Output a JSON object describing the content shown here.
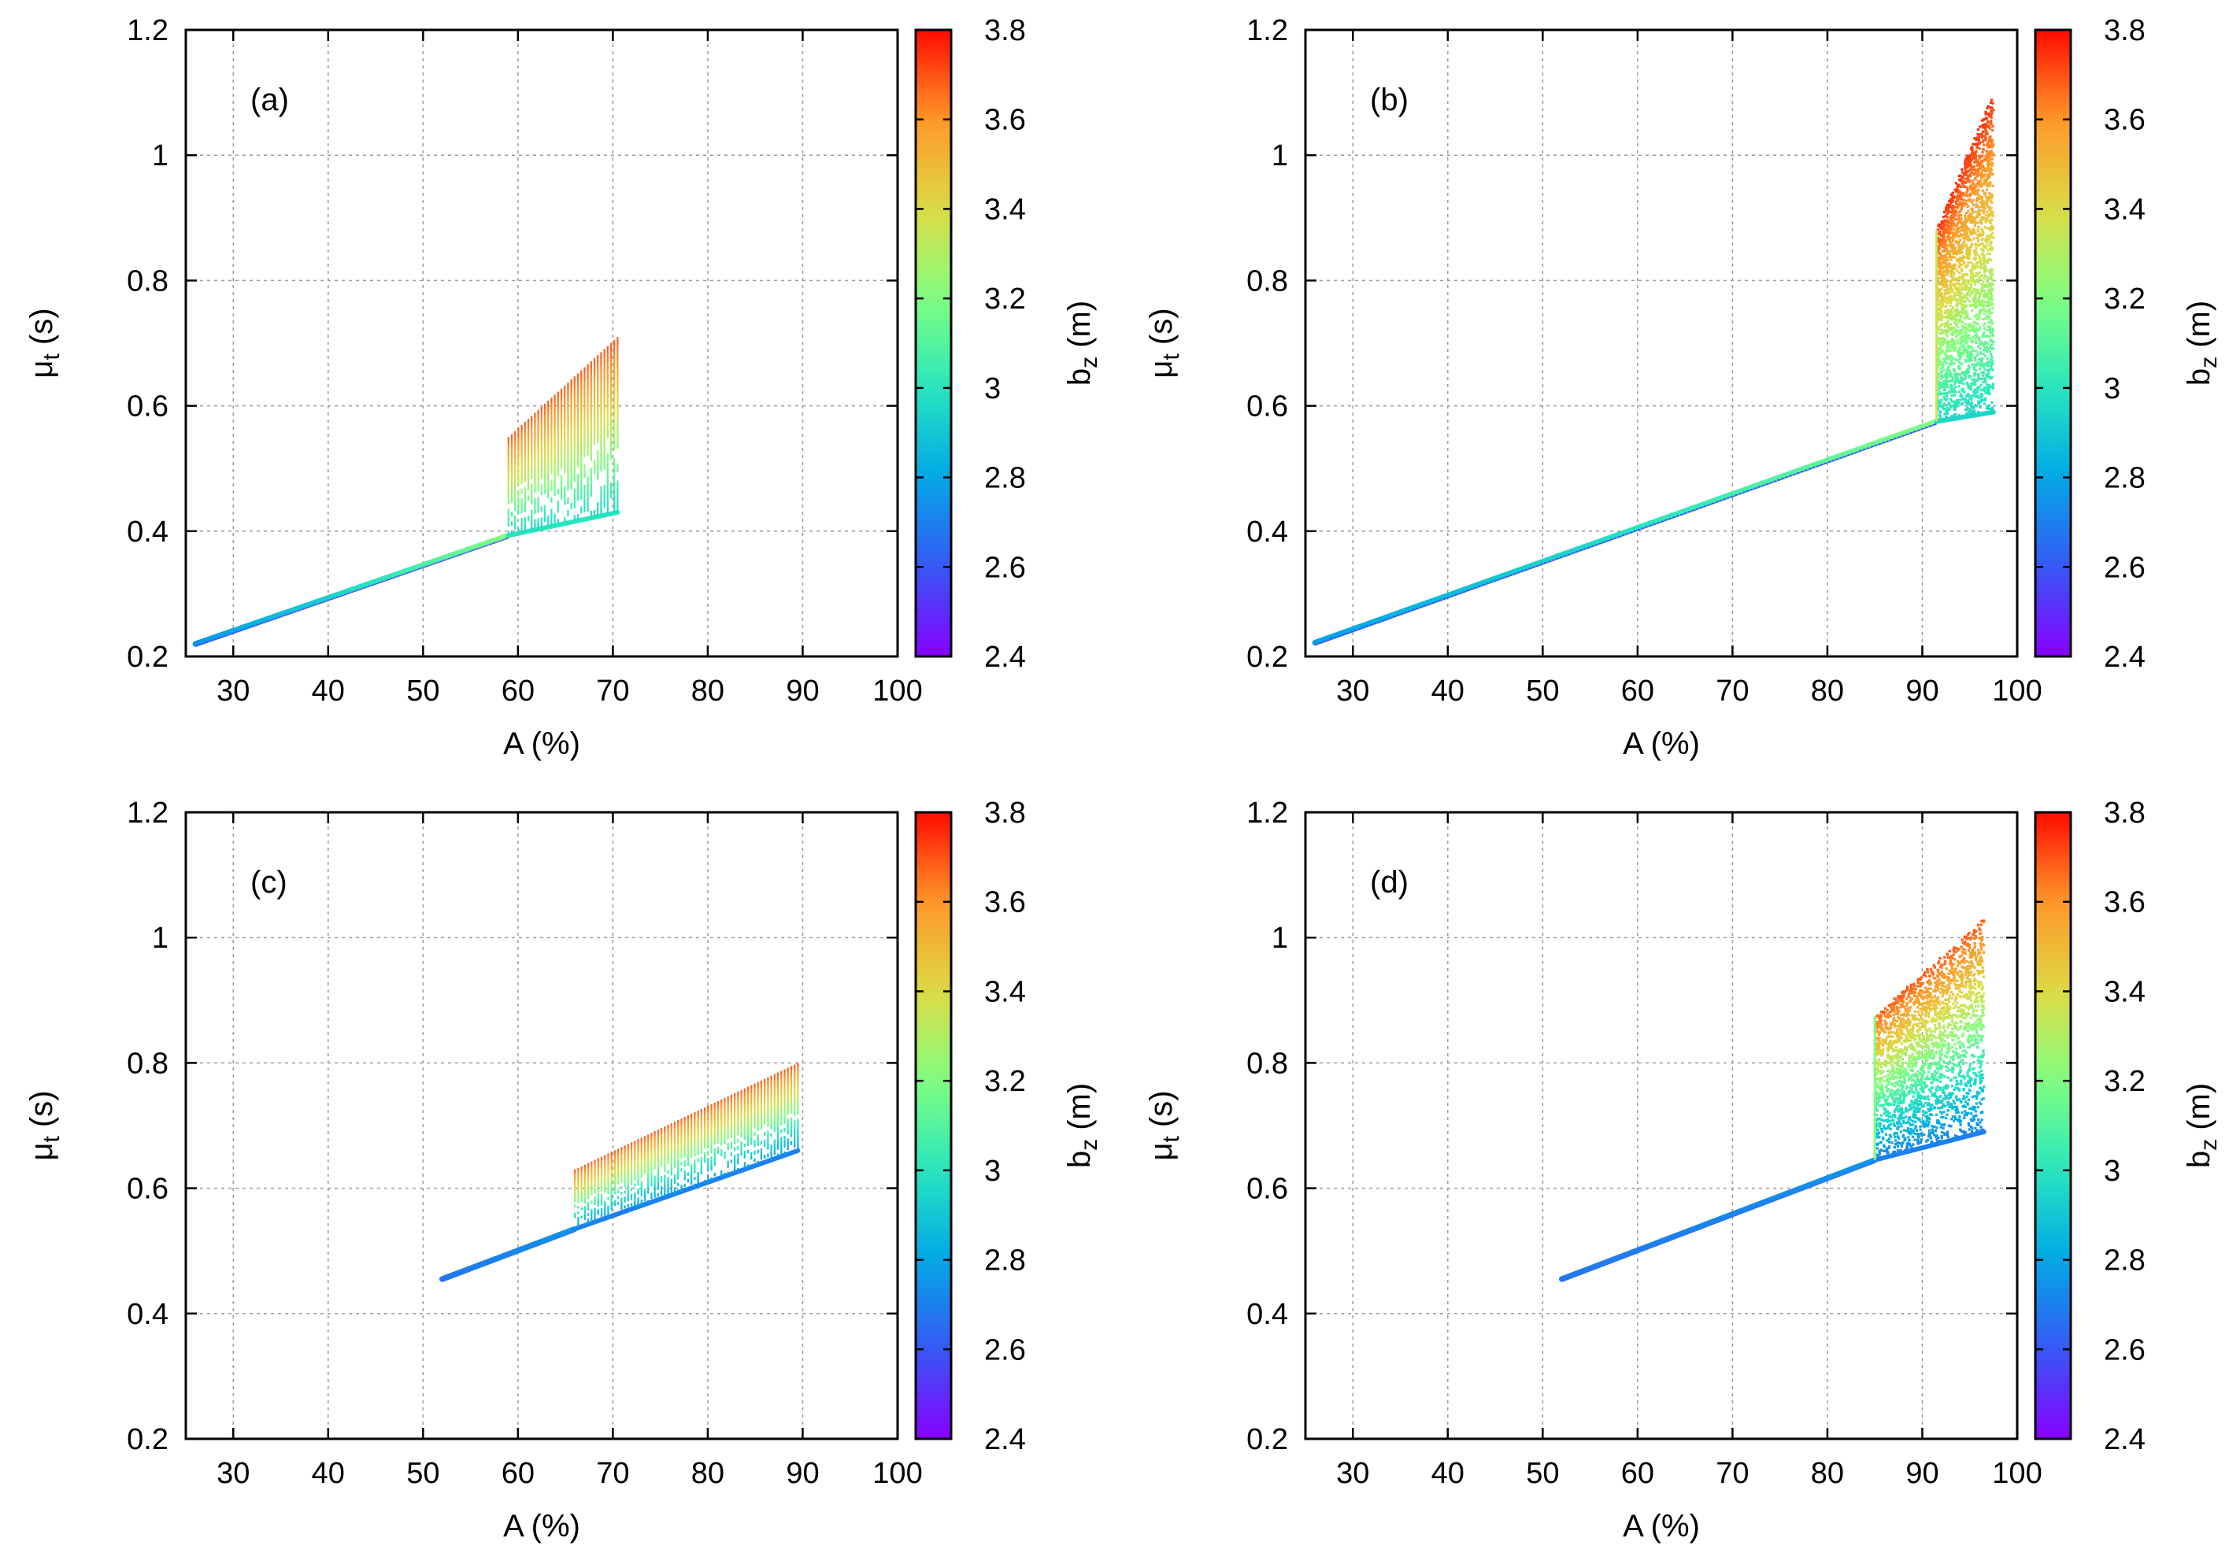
{
  "chart_data": [
    {
      "type": "scatter",
      "panel_label": "(a)",
      "title": "",
      "xlabel": "A (%)",
      "ylabel": "μt (s)",
      "ylabel_main": "μ",
      "ylabel_sub": "t",
      "ylabel_unit": " (s)",
      "xlim": [
        25,
        100
      ],
      "ylim": [
        0.2,
        1.2
      ],
      "xticks": [
        30,
        40,
        50,
        60,
        70,
        80,
        90,
        100
      ],
      "yticks": [
        0.2,
        0.4,
        0.6,
        0.8,
        1,
        1.2
      ],
      "grid": true,
      "colorbar": {
        "label": "bz (m)",
        "label_main": "b",
        "label_sub": "z",
        "label_unit": " (m)",
        "range": [
          2.4,
          3.8
        ],
        "ticks": [
          2.4,
          2.6,
          2.8,
          3,
          3.2,
          3.4,
          3.6,
          3.8
        ],
        "colormap": "rainbow"
      },
      "line": {
        "x": [
          26,
          59
        ],
        "y": [
          0.22,
          0.393
        ],
        "bz_low": 2.55,
        "bz_high": 3.2
      },
      "upper_line": {
        "x": [
          59,
          70.5
        ],
        "y": [
          0.393,
          0.43
        ],
        "bz": 3.0
      },
      "region": {
        "x_start": 59,
        "x_end": 70.5,
        "y_bottom_start": 0.393,
        "y_bottom_end": 0.43,
        "y_top_start": 0.55,
        "y_top_end": 0.71,
        "bz_bottom": 2.95,
        "bz_top": 3.7,
        "style": "stripes"
      }
    },
    {
      "type": "scatter",
      "panel_label": "(b)",
      "title": "",
      "xlabel": "A (%)",
      "ylabel": "μt (s)",
      "ylabel_main": "μ",
      "ylabel_sub": "t",
      "ylabel_unit": " (s)",
      "xlim": [
        25,
        100
      ],
      "ylim": [
        0.2,
        1.2
      ],
      "xticks": [
        30,
        40,
        50,
        60,
        70,
        80,
        90,
        100
      ],
      "yticks": [
        0.2,
        0.4,
        0.6,
        0.8,
        1,
        1.2
      ],
      "grid": true,
      "colorbar": {
        "label": "bz (m)",
        "label_main": "b",
        "label_sub": "z",
        "label_unit": " (m)",
        "range": [
          2.4,
          3.8
        ],
        "ticks": [
          2.4,
          2.6,
          2.8,
          3,
          3.2,
          3.4,
          3.6,
          3.8
        ],
        "colormap": "rainbow"
      },
      "line": {
        "x": [
          26,
          91.5
        ],
        "y": [
          0.222,
          0.575
        ],
        "bz_low": 2.6,
        "bz_high": 3.2
      },
      "upper_line": {
        "x": [
          91.5,
          97.5
        ],
        "y": [
          0.575,
          0.59
        ],
        "bz": 2.95
      },
      "region": {
        "x_start": 91.5,
        "x_end": 97.5,
        "y_bottom_start": 0.575,
        "y_bottom_end": 0.59,
        "y_top_start": 0.88,
        "y_top_end": 1.1,
        "bz_bottom": 2.95,
        "bz_top": 3.75,
        "style": "dense"
      }
    },
    {
      "type": "scatter",
      "panel_label": "(c)",
      "title": "",
      "xlabel": "A (%)",
      "ylabel": "μt (s)",
      "ylabel_main": "μ",
      "ylabel_sub": "t",
      "ylabel_unit": " (s)",
      "xlim": [
        25,
        100
      ],
      "ylim": [
        0.2,
        1.2
      ],
      "xticks": [
        30,
        40,
        50,
        60,
        70,
        80,
        90,
        100
      ],
      "yticks": [
        0.2,
        0.4,
        0.6,
        0.8,
        1,
        1.2
      ],
      "grid": true,
      "colorbar": {
        "label": "bz (m)",
        "label_main": "b",
        "label_sub": "z",
        "label_unit": " (m)",
        "range": [
          2.4,
          3.8
        ],
        "ticks": [
          2.4,
          2.6,
          2.8,
          3,
          3.2,
          3.4,
          3.6,
          3.8
        ],
        "colormap": "rainbow"
      },
      "line": {
        "x": [
          52,
          66
        ],
        "y": [
          0.455,
          0.535
        ],
        "bz_low": 2.65,
        "bz_high": 2.75
      },
      "upper_line": {
        "x": [
          66,
          89.5
        ],
        "y": [
          0.535,
          0.66
        ],
        "bz": 2.7
      },
      "region": {
        "x_start": 66,
        "x_end": 89.5,
        "y_bottom_start": 0.535,
        "y_bottom_end": 0.66,
        "y_top_start": 0.63,
        "y_top_end": 0.8,
        "bz_bottom": 2.75,
        "bz_top": 3.7,
        "style": "stripes"
      }
    },
    {
      "type": "scatter",
      "panel_label": "(d)",
      "title": "",
      "xlabel": "A (%)",
      "ylabel": "μt (s)",
      "ylabel_main": "μ",
      "ylabel_sub": "t",
      "ylabel_unit": " (s)",
      "xlim": [
        25,
        100
      ],
      "ylim": [
        0.2,
        1.2
      ],
      "xticks": [
        30,
        40,
        50,
        60,
        70,
        80,
        90,
        100
      ],
      "yticks": [
        0.2,
        0.4,
        0.6,
        0.8,
        1,
        1.2
      ],
      "grid": true,
      "colorbar": {
        "label": "bz (m)",
        "label_main": "b",
        "label_sub": "z",
        "label_unit": " (m)",
        "range": [
          2.4,
          3.8
        ],
        "ticks": [
          2.4,
          2.6,
          2.8,
          3,
          3.2,
          3.4,
          3.6,
          3.8
        ],
        "colormap": "rainbow"
      },
      "line": {
        "x": [
          52,
          85
        ],
        "y": [
          0.455,
          0.645
        ],
        "bz_low": 2.65,
        "bz_high": 2.75
      },
      "upper_line": {
        "x": [
          85,
          96.5
        ],
        "y": [
          0.645,
          0.69
        ],
        "bz": 2.7
      },
      "region": {
        "x_start": 85,
        "x_end": 96.5,
        "y_bottom_start": 0.645,
        "y_bottom_end": 0.69,
        "y_top_start": 0.875,
        "y_top_end": 1.03,
        "bz_bottom": 2.7,
        "bz_top": 3.7,
        "style": "dense"
      }
    }
  ]
}
